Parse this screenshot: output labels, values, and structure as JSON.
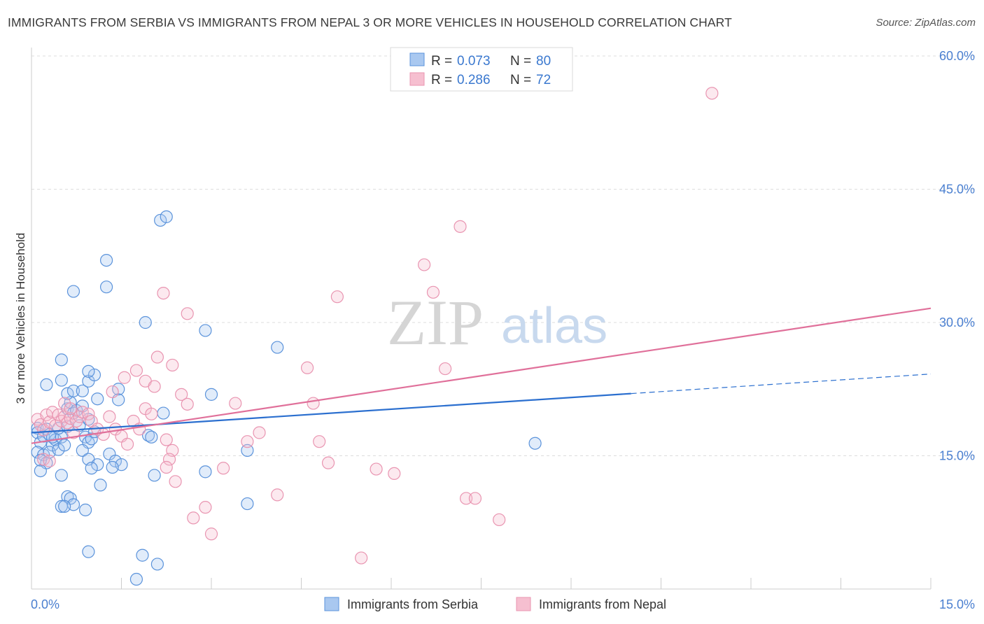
{
  "title": "IMMIGRANTS FROM SERBIA VS IMMIGRANTS FROM NEPAL 3 OR MORE VEHICLES IN HOUSEHOLD CORRELATION CHART",
  "source": "Source: ZipAtlas.com",
  "watermark": {
    "zip": "ZIP",
    "atlas": "atlas"
  },
  "colors": {
    "serbia_fill": "#a9c8f0",
    "serbia_stroke": "#5b93db",
    "serbia_line": "#2b6fcf",
    "nepal_fill": "#f6bfd0",
    "nepal_stroke": "#e995b1",
    "nepal_line": "#e0709a",
    "tick_label": "#4a7fd0",
    "grid": "#dddddd"
  },
  "legend": {
    "r_label": "R =",
    "n_label": "N =",
    "serbia": {
      "r": "0.073",
      "n": "80"
    },
    "nepal": {
      "r": "0.286",
      "n": "72"
    }
  },
  "chart_data": {
    "type": "scatter",
    "title": "IMMIGRANTS FROM SERBIA VS IMMIGRANTS FROM NEPAL 3 OR MORE VEHICLES IN HOUSEHOLD CORRELATION CHART",
    "xlabel": "",
    "ylabel": "3 or more Vehicles in Household",
    "xlim": [
      0,
      15
    ],
    "ylim": [
      0,
      60
    ],
    "x_tick_labels": [
      "0.0%",
      "15.0%"
    ],
    "y_ticks": [
      15,
      30,
      45,
      60
    ],
    "y_tick_labels": [
      "15.0%",
      "30.0%",
      "45.0%",
      "60.0%"
    ],
    "grid": true,
    "series": [
      {
        "name": "Immigrants from Serbia",
        "trend": {
          "x0": 0,
          "y0": 17.6,
          "x1": 10.0,
          "y1": 22.0,
          "dash_to_x": 15.0,
          "dash_to_y": 24.2
        },
        "points": [
          [
            0.1,
            18.1
          ],
          [
            0.1,
            17.6
          ],
          [
            0.15,
            16.5
          ],
          [
            0.2,
            17.2
          ],
          [
            0.25,
            18.0
          ],
          [
            0.3,
            17.4
          ],
          [
            0.35,
            16.2
          ],
          [
            0.4,
            16.8
          ],
          [
            0.1,
            15.4
          ],
          [
            0.2,
            15.1
          ],
          [
            0.25,
            14.2
          ],
          [
            0.15,
            14.5
          ],
          [
            0.15,
            13.3
          ],
          [
            0.3,
            15.4
          ],
          [
            0.35,
            17.1
          ],
          [
            0.45,
            15.7
          ],
          [
            0.5,
            17.1
          ],
          [
            0.55,
            16.2
          ],
          [
            0.6,
            20.3
          ],
          [
            0.65,
            21.0
          ],
          [
            0.7,
            19.8
          ],
          [
            0.75,
            20.1
          ],
          [
            0.8,
            18.4
          ],
          [
            0.85,
            20.6
          ],
          [
            0.9,
            17.1
          ],
          [
            0.95,
            16.5
          ],
          [
            1.0,
            16.9
          ],
          [
            0.6,
            22.0
          ],
          [
            0.7,
            22.3
          ],
          [
            0.85,
            22.3
          ],
          [
            0.95,
            23.4
          ],
          [
            1.05,
            24.1
          ],
          [
            0.25,
            23.0
          ],
          [
            0.5,
            25.8
          ],
          [
            0.5,
            23.5
          ],
          [
            0.95,
            24.5
          ],
          [
            0.7,
            33.5
          ],
          [
            1.25,
            34.0
          ],
          [
            1.25,
            37.0
          ],
          [
            2.15,
            41.5
          ],
          [
            2.25,
            41.9
          ],
          [
            1.9,
            30.0
          ],
          [
            2.9,
            29.1
          ],
          [
            4.1,
            27.2
          ],
          [
            1.45,
            22.5
          ],
          [
            1.45,
            21.3
          ],
          [
            1.1,
            21.4
          ],
          [
            2.2,
            19.8
          ],
          [
            3.0,
            21.9
          ],
          [
            3.6,
            15.6
          ],
          [
            0.85,
            15.6
          ],
          [
            0.95,
            14.6
          ],
          [
            1.1,
            14.0
          ],
          [
            1.0,
            13.6
          ],
          [
            1.3,
            15.2
          ],
          [
            1.4,
            14.4
          ],
          [
            1.5,
            14.0
          ],
          [
            1.35,
            13.7
          ],
          [
            1.95,
            17.3
          ],
          [
            2.0,
            17.1
          ],
          [
            0.5,
            12.8
          ],
          [
            0.6,
            10.4
          ],
          [
            0.65,
            10.2
          ],
          [
            0.7,
            9.5
          ],
          [
            0.5,
            9.3
          ],
          [
            0.55,
            9.3
          ],
          [
            0.9,
            8.9
          ],
          [
            1.15,
            11.7
          ],
          [
            2.05,
            12.8
          ],
          [
            2.9,
            13.2
          ],
          [
            3.6,
            9.6
          ],
          [
            0.95,
            4.2
          ],
          [
            1.85,
            3.8
          ],
          [
            2.1,
            2.8
          ],
          [
            1.75,
            1.1
          ],
          [
            8.4,
            16.4
          ],
          [
            0.45,
            18.1
          ],
          [
            0.6,
            18.3
          ],
          [
            0.95,
            19.1
          ],
          [
            1.05,
            17.7
          ]
        ]
      },
      {
        "name": "Immigrants from Nepal",
        "trend": {
          "x0": 0,
          "y0": 16.4,
          "x1": 15.0,
          "y1": 31.6
        },
        "points": [
          [
            0.1,
            19.1
          ],
          [
            0.15,
            18.5
          ],
          [
            0.2,
            17.9
          ],
          [
            0.25,
            19.6
          ],
          [
            0.3,
            18.8
          ],
          [
            0.35,
            19.9
          ],
          [
            0.4,
            18.4
          ],
          [
            0.45,
            19.6
          ],
          [
            0.5,
            18.9
          ],
          [
            0.55,
            19.4
          ],
          [
            0.6,
            18.7
          ],
          [
            0.65,
            19.2
          ],
          [
            0.7,
            17.6
          ],
          [
            0.75,
            18.9
          ],
          [
            0.8,
            19.4
          ],
          [
            0.85,
            19.9
          ],
          [
            0.2,
            14.6
          ],
          [
            0.3,
            14.4
          ],
          [
            0.55,
            20.9
          ],
          [
            0.65,
            20.3
          ],
          [
            0.95,
            19.7
          ],
          [
            1.0,
            18.9
          ],
          [
            1.1,
            18.0
          ],
          [
            1.2,
            17.4
          ],
          [
            1.3,
            19.4
          ],
          [
            1.4,
            18.0
          ],
          [
            1.5,
            17.2
          ],
          [
            1.6,
            16.3
          ],
          [
            1.7,
            18.9
          ],
          [
            1.8,
            18.0
          ],
          [
            1.9,
            20.3
          ],
          [
            2.0,
            19.7
          ],
          [
            1.35,
            22.2
          ],
          [
            1.55,
            23.8
          ],
          [
            1.75,
            24.6
          ],
          [
            1.9,
            23.4
          ],
          [
            2.1,
            26.1
          ],
          [
            2.05,
            22.8
          ],
          [
            2.35,
            25.2
          ],
          [
            2.5,
            21.9
          ],
          [
            2.6,
            20.8
          ],
          [
            2.25,
            16.8
          ],
          [
            2.35,
            15.6
          ],
          [
            2.3,
            14.6
          ],
          [
            2.25,
            13.7
          ],
          [
            2.4,
            12.1
          ],
          [
            2.2,
            33.3
          ],
          [
            2.6,
            31.0
          ],
          [
            3.2,
            13.6
          ],
          [
            3.4,
            20.9
          ],
          [
            3.6,
            16.6
          ],
          [
            3.8,
            17.6
          ],
          [
            4.1,
            10.6
          ],
          [
            4.6,
            24.9
          ],
          [
            4.7,
            20.9
          ],
          [
            4.8,
            16.6
          ],
          [
            4.95,
            14.2
          ],
          [
            5.1,
            32.9
          ],
          [
            5.75,
            13.5
          ],
          [
            6.05,
            13.0
          ],
          [
            6.55,
            36.5
          ],
          [
            6.7,
            33.4
          ],
          [
            6.9,
            24.8
          ],
          [
            7.15,
            40.8
          ],
          [
            7.25,
            10.2
          ],
          [
            7.4,
            10.2
          ],
          [
            7.8,
            7.8
          ],
          [
            2.7,
            8.0
          ],
          [
            2.9,
            9.2
          ],
          [
            3.0,
            6.2
          ],
          [
            5.5,
            3.5
          ],
          [
            11.35,
            55.8
          ]
        ]
      }
    ]
  }
}
